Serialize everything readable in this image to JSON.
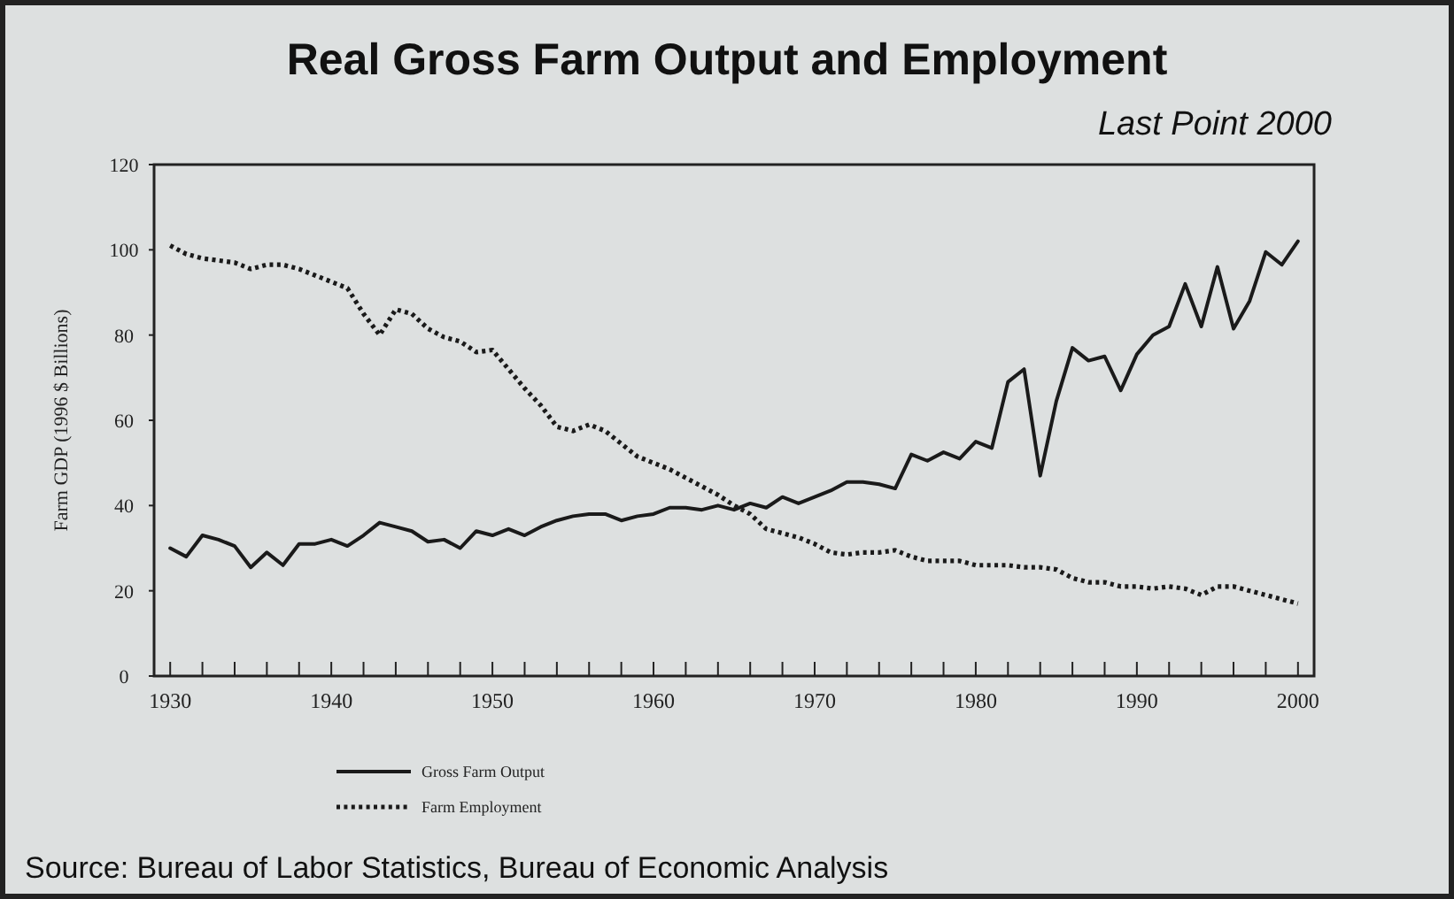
{
  "chart_data": {
    "type": "line",
    "title": "Real Gross Farm Output and Employment",
    "subtitle": "Last Point 2000",
    "ylabel": "Farm GDP (1996 $ Billions)",
    "annotations": [
      "Source: Bureau of Labor Statistics, Bureau of Economic Analysis"
    ],
    "x": [
      1930,
      1931,
      1932,
      1933,
      1934,
      1935,
      1936,
      1937,
      1938,
      1939,
      1940,
      1941,
      1942,
      1943,
      1944,
      1945,
      1946,
      1947,
      1948,
      1949,
      1950,
      1951,
      1952,
      1953,
      1954,
      1955,
      1956,
      1957,
      1958,
      1959,
      1960,
      1961,
      1962,
      1963,
      1964,
      1965,
      1966,
      1967,
      1968,
      1969,
      1970,
      1971,
      1972,
      1973,
      1974,
      1975,
      1976,
      1977,
      1978,
      1979,
      1980,
      1981,
      1982,
      1983,
      1984,
      1985,
      1986,
      1987,
      1988,
      1989,
      1990,
      1991,
      1992,
      1993,
      1994,
      1995,
      1996,
      1997,
      1998,
      1999,
      2000
    ],
    "series": [
      {
        "name": "Gross Farm Output",
        "color": "#1a1a1a",
        "line_style": "solid",
        "values": [
          30,
          28,
          33,
          32,
          30.5,
          25.5,
          29,
          26,
          31,
          31,
          32,
          30.5,
          33,
          36,
          35,
          34,
          31.5,
          32,
          30,
          34,
          33,
          34.5,
          33,
          35,
          36.5,
          37.5,
          38,
          38,
          36.5,
          37.5,
          38,
          39.5,
          39.5,
          39,
          40,
          39,
          40.5,
          39.5,
          42,
          40.5,
          42,
          43.5,
          45.5,
          45.5,
          45,
          44,
          52,
          50.5,
          52.5,
          51,
          55,
          53.5,
          69,
          72,
          47,
          64.5,
          77,
          74,
          75,
          67,
          75.5,
          80,
          82,
          92,
          82,
          96,
          81.5,
          88,
          99.5,
          96.5,
          102
        ]
      },
      {
        "name": "Farm Employment",
        "color": "#1a1a1a",
        "line_style": "dotted",
        "values": [
          101,
          99,
          98,
          97.5,
          97,
          95.5,
          96.5,
          96.5,
          95.5,
          94,
          92.5,
          91,
          85,
          80,
          86,
          85,
          81.5,
          79.5,
          78.5,
          76,
          76.5,
          72,
          67.5,
          63.5,
          58.5,
          57.5,
          59,
          57.5,
          54.5,
          51.5,
          50,
          48.5,
          46.5,
          44.5,
          42.5,
          40,
          38,
          34.5,
          33.5,
          32.5,
          31,
          29,
          28.5,
          29,
          29,
          29.5,
          28,
          27,
          27,
          27,
          26,
          26,
          26,
          25.5,
          25.5,
          25,
          23,
          22,
          22,
          21,
          21,
          20.5,
          21,
          20.5,
          19,
          21,
          21,
          20,
          19,
          18,
          17
        ]
      }
    ],
    "xlim": [
      1929,
      2001
    ],
    "xticks": [
      1930,
      {
        "value": 1932,
        "label": null
      },
      {
        "value": 1934,
        "label": null
      },
      {
        "value": 1936,
        "label": null
      },
      {
        "value": 1938,
        "label": null
      },
      1940,
      {
        "value": 1942,
        "label": null
      },
      {
        "value": 1944,
        "label": null
      },
      {
        "value": 1946,
        "label": null
      },
      {
        "value": 1948,
        "label": null
      },
      1950,
      {
        "value": 1952,
        "label": null
      },
      {
        "value": 1954,
        "label": null
      },
      {
        "value": 1956,
        "label": null
      },
      {
        "value": 1958,
        "label": null
      },
      1960,
      {
        "value": 1962,
        "label": null
      },
      {
        "value": 1964,
        "label": null
      },
      {
        "value": 1966,
        "label": null
      },
      {
        "value": 1968,
        "label": null
      },
      1970,
      {
        "value": 1972,
        "label": null
      },
      {
        "value": 1974,
        "label": null
      },
      {
        "value": 1976,
        "label": null
      },
      {
        "value": 1978,
        "label": null
      },
      1980,
      {
        "value": 1982,
        "label": null
      },
      {
        "value": 1984,
        "label": null
      },
      {
        "value": 1986,
        "label": null
      },
      {
        "value": 1988,
        "label": null
      },
      1990,
      {
        "value": 1992,
        "label": null
      },
      {
        "value": 1994,
        "label": null
      },
      {
        "value": 1996,
        "label": null
      },
      {
        "value": 1998,
        "label": null
      },
      2000
    ],
    "ylim": [
      0,
      120
    ],
    "yticks": [
      0,
      20,
      40,
      60,
      80,
      100,
      120
    ],
    "grid": false,
    "legend": "bottom",
    "marker": "none"
  }
}
